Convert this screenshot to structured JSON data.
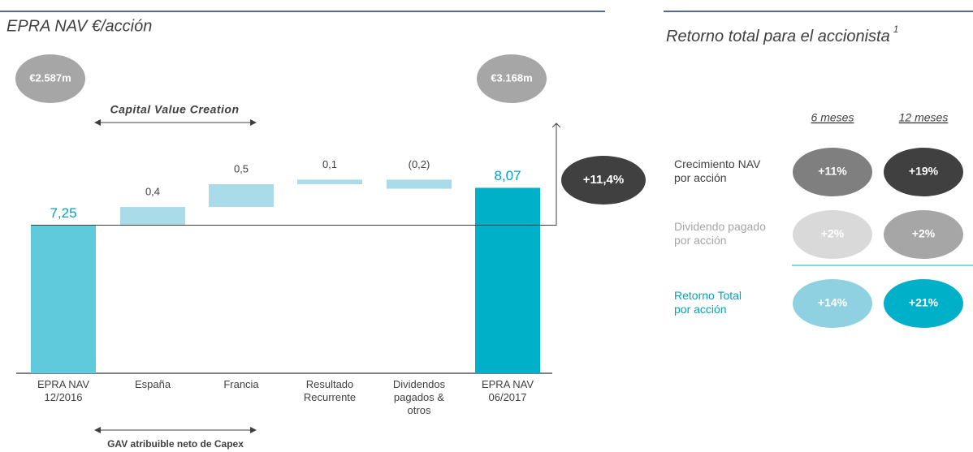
{
  "chart_data": {
    "type": "waterfall",
    "title": "EPRA NAV €/acción",
    "categories": [
      "EPRA NAV\n12/2016",
      "España",
      "Francia",
      "Resultado\nRecurrente",
      "Dividendos\npagados &\notros",
      "EPRA NAV\n06/2017"
    ],
    "values": [
      7.25,
      0.4,
      0.5,
      0.1,
      -0.2,
      8.07
    ],
    "value_labels": [
      "7,25",
      "0,4",
      "0,5",
      "0,1",
      "(0,2)",
      "8,07"
    ],
    "totals": [
      true,
      false,
      false,
      false,
      false,
      true
    ],
    "colors": [
      "#5fcadb",
      "#a9dbe9",
      "#a9dbe9",
      "#a9dbe9",
      "#a9dbe9",
      "#00afc8"
    ],
    "ylim": [
      4,
      10.5
    ],
    "annotations": {
      "start_value": "€2.587m",
      "end_value": "€3.168m",
      "capital": "Capital Value Creation",
      "gav": "GAV atribuible neto de Capex",
      "growth": "+11,4%"
    }
  },
  "table": {
    "title": "Retorno total para el accionista",
    "footnote": "1",
    "columns": [
      "6 meses",
      "12 meses"
    ],
    "rows": [
      {
        "label": "Crecimiento NAV\npor acción",
        "values": [
          "+11%",
          "+19%"
        ]
      },
      {
        "label": "Dividendo pagado\npor acción",
        "values": [
          "+2%",
          "+2%"
        ]
      },
      {
        "label": "Retorno Total\npor acción",
        "values": [
          "+14%",
          "+21%"
        ]
      }
    ]
  }
}
